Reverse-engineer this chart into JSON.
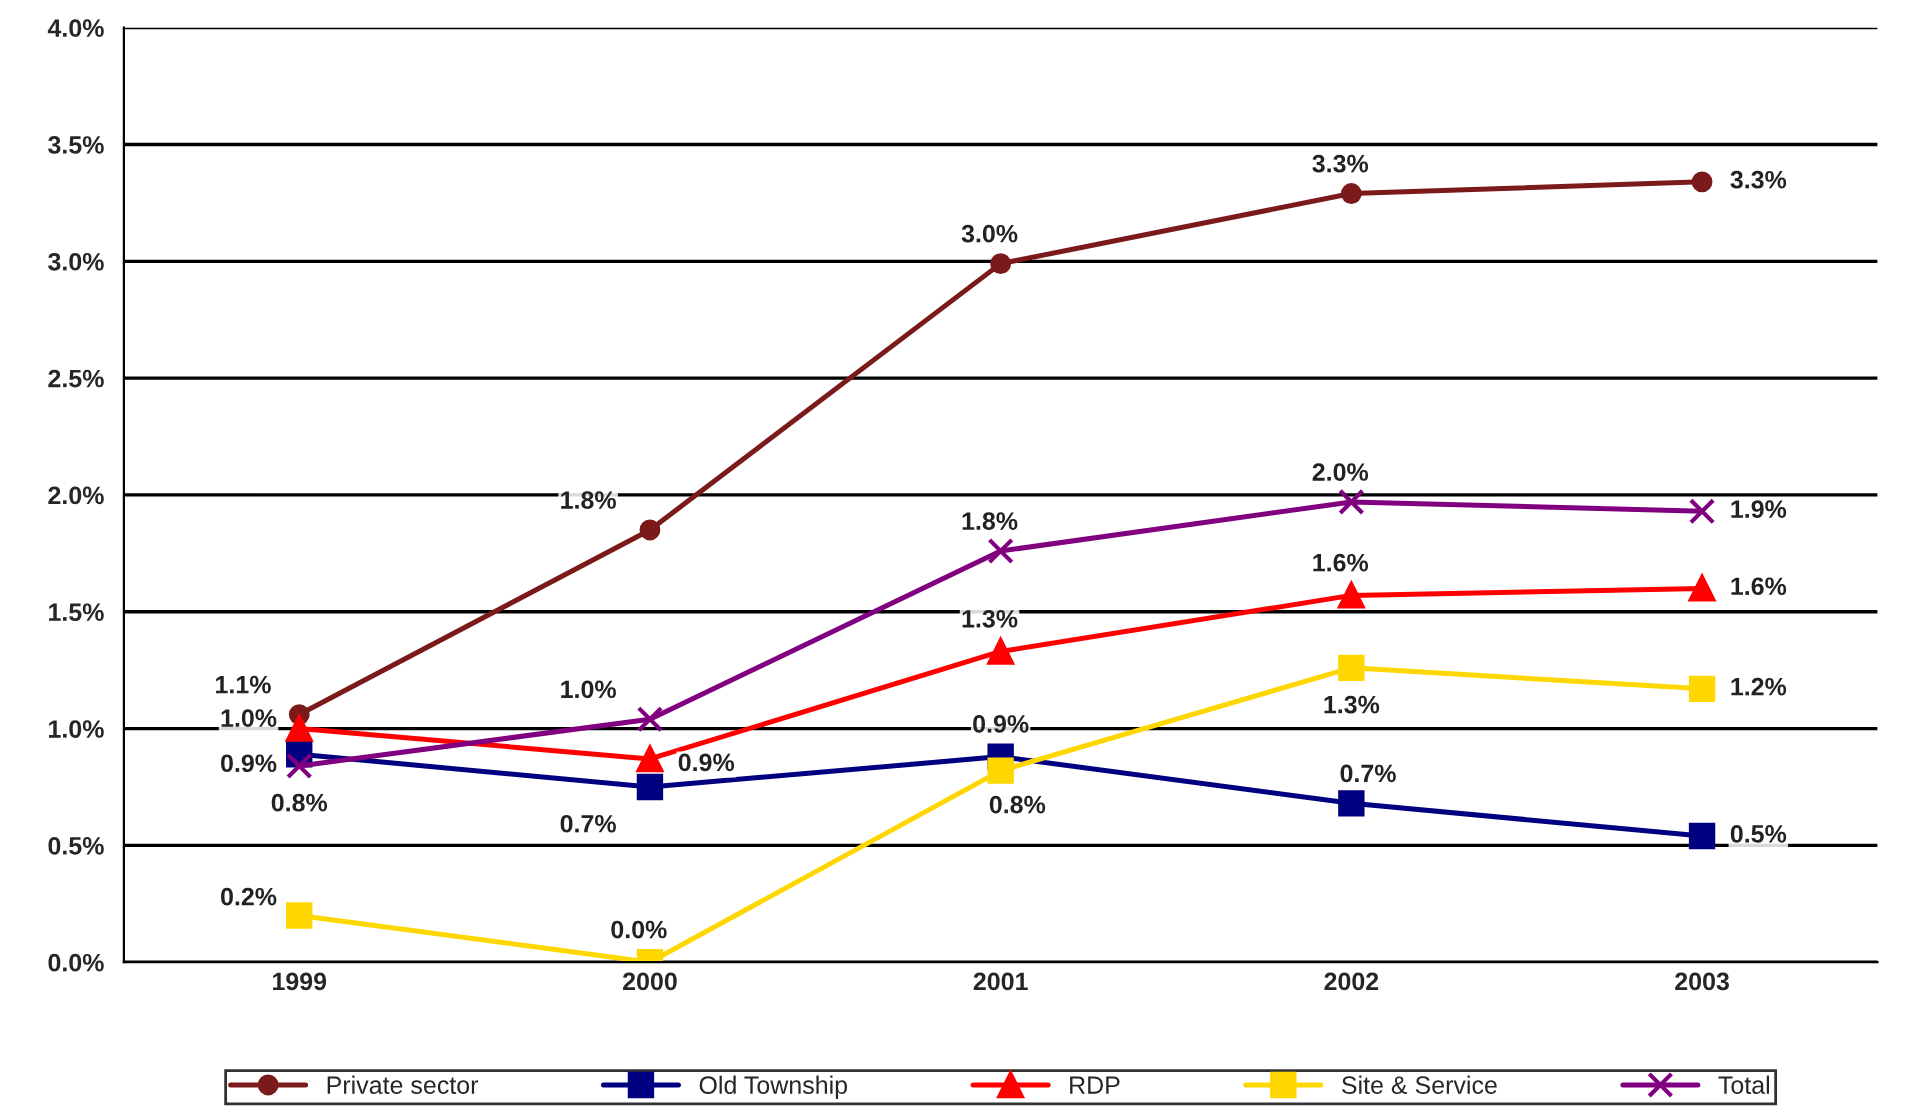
{
  "chart_data": {
    "type": "line",
    "categories": [
      "1999",
      "2000",
      "2001",
      "2002",
      "2003"
    ],
    "series": [
      {
        "name": "Private sector",
        "color": "#7b1a1a",
        "marker": "circle",
        "values": [
          1.06,
          1.85,
          2.99,
          3.29,
          3.34
        ],
        "value_labels": [
          "1.1%",
          "1.8%",
          "3.0%",
          "3.3%",
          "3.3%"
        ]
      },
      {
        "name": "Old Township",
        "color": "#000080",
        "marker": "square",
        "values": [
          0.89,
          0.75,
          0.88,
          0.68,
          0.54
        ],
        "value_labels": [
          "0.9%",
          "0.7%",
          "0.9%",
          "0.7%",
          "0.5%"
        ]
      },
      {
        "name": "RDP",
        "color": "#ff0000",
        "marker": "triangle",
        "values": [
          1.0,
          0.87,
          1.33,
          1.57,
          1.6
        ],
        "value_labels": [
          "1.0%",
          "0.9%",
          "1.3%",
          "1.6%",
          "1.6%"
        ]
      },
      {
        "name": "Site & Service",
        "color": "#ffd700",
        "marker": "square",
        "values": [
          0.2,
          0.0,
          0.82,
          1.26,
          1.17
        ],
        "value_labels": [
          "0.2%",
          "0.0%",
          "0.8%",
          "1.3%",
          "1.2%"
        ]
      },
      {
        "name": "Total",
        "color": "#800080",
        "marker": "cross",
        "values": [
          0.84,
          1.04,
          1.76,
          1.97,
          1.93
        ],
        "value_labels": [
          "0.8%",
          "1.0%",
          "1.8%",
          "2.0%",
          "1.9%"
        ]
      }
    ],
    "ylim": [
      0,
      4.0
    ],
    "yticks": [
      {
        "value": 0,
        "label": "0.0%"
      },
      {
        "value": 0.5,
        "label": "0.5%"
      },
      {
        "value": 1.0,
        "label": "1.0%"
      },
      {
        "value": 1.5,
        "label": "1.5%"
      },
      {
        "value": 2.0,
        "label": "2.0%"
      },
      {
        "value": 2.5,
        "label": "2.5%"
      },
      {
        "value": 3.0,
        "label": "3.0%"
      },
      {
        "value": 3.5,
        "label": "3.5%"
      },
      {
        "value": 4.0,
        "label": "4.0%"
      }
    ],
    "grid": "y",
    "legend": "bottom",
    "line_style": "solid"
  }
}
